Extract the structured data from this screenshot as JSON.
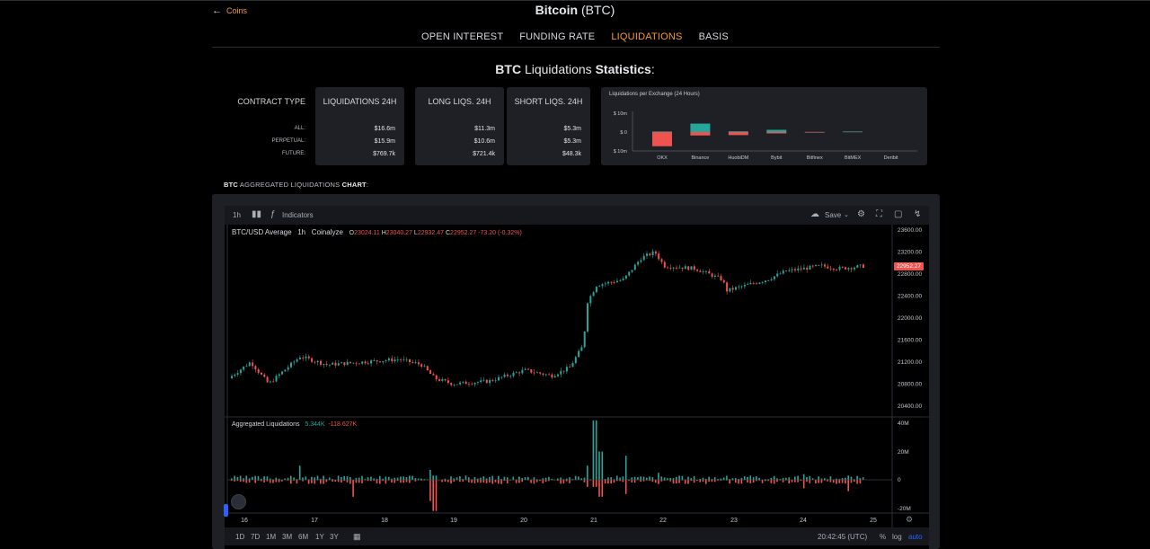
{
  "nav": {
    "back_label": "Coins",
    "title_bold": "Bitcoin",
    "title_rest": " (BTC)"
  },
  "tabs": [
    "OPEN INTEREST",
    "FUNDING RATE",
    "LIQUIDATIONS",
    "BASIS"
  ],
  "active_tab": "LIQUIDATIONS",
  "stats": {
    "title_a": "BTC",
    "title_b": " Liquidations ",
    "title_c": "Statistics",
    "title_d": ":",
    "contract_type_label": "CONTRACT TYPE",
    "row_labels": [
      "ALL:",
      "PERPETUAL:",
      "FUTURE:"
    ],
    "cards": [
      {
        "header": "LIQUIDATIONS 24H",
        "values": [
          "$16.6m",
          "$15.9m",
          "$769.7k"
        ]
      },
      {
        "header": "LONG LIQS. 24H",
        "values": [
          "$11.3m",
          "$10.6m",
          "$721.4k"
        ]
      },
      {
        "header": "SHORT LIQS. 24H",
        "values": [
          "$5.3m",
          "$5.3m",
          "$48.3k"
        ]
      }
    ]
  },
  "exchange_chart": {
    "title": "Liquidations per Exchange (24 Hours)",
    "y_ticks": [
      "$ 10m",
      "$ 0",
      "$ 10m"
    ],
    "chart_data": {
      "type": "bar",
      "categories": [
        "OKX",
        "Binance",
        "HuobiDM",
        "Bybit",
        "Bitfinex",
        "BitMEX",
        "Deribit"
      ],
      "series": [
        {
          "values": [
            0.3,
            4.5,
            0.4,
            1.2,
            0.1,
            0.3,
            0
          ]
        },
        {
          "values": [
            -7.5,
            -1.8,
            -1.6,
            -0.7,
            -0.3,
            -0.1,
            0
          ]
        }
      ],
      "ylim": [
        -10,
        10
      ]
    }
  },
  "agg": {
    "title_a": "BTC",
    "title_b": " AGGREGATED LIQUIDATIONS ",
    "title_c": "CHART",
    "title_d": ":"
  },
  "tv": {
    "interval": "1h",
    "indicators_label": "Indicators",
    "save_label": "Save",
    "legend_symbol": "BTC/USD Average",
    "legend_interval": "1h",
    "legend_source": "Coinalyze",
    "ohlc": {
      "o": "23024.11",
      "h": "23040.27",
      "l": "22932.47",
      "c": "22952.27",
      "chg": "-73.20 (-0.32%)"
    },
    "o_label": "O",
    "h_label": "H",
    "l_label": "L",
    "c_label": "C",
    "price_ticks": [
      "23600.00",
      "23200.00",
      "22800.00",
      "22400.00",
      "22000.00",
      "21600.00",
      "21200.00",
      "20800.00",
      "20400.00"
    ],
    "last_price": "22952.27",
    "sub_title": "Aggregated Liquidations",
    "sub_long": "5.344K",
    "sub_short": "-118.627K",
    "sub_ticks": [
      "40M",
      "20M",
      "0",
      "-20M"
    ],
    "dates": [
      "16",
      "17",
      "18",
      "19",
      "20",
      "21",
      "22",
      "23",
      "24",
      "25"
    ],
    "ranges": [
      "1D",
      "7D",
      "1M",
      "3M",
      "6M",
      "1Y",
      "3Y"
    ],
    "time": "20:42:45 (UTC)",
    "pct_label": "%",
    "log_label": "log",
    "auto_label": "auto",
    "colors": {
      "up": "#26a69a",
      "down": "#ef5350",
      "accent": "#f29a2e",
      "blue": "#2962ff"
    }
  }
}
